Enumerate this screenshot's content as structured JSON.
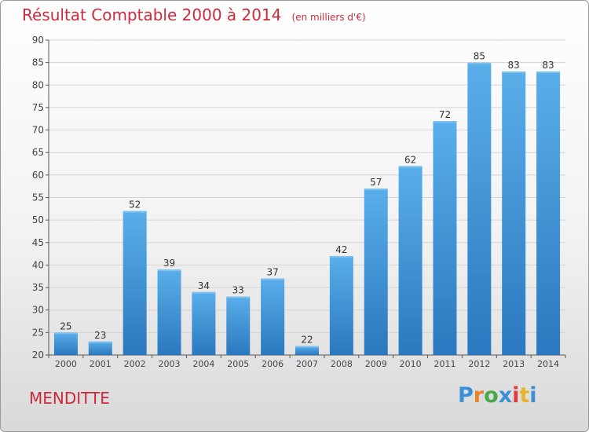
{
  "chart_data": {
    "type": "bar",
    "title": "Résultat Comptable 2000 à 2014",
    "subtitle": "(en milliers d'€)",
    "categories": [
      "2000",
      "2001",
      "2002",
      "2003",
      "2004",
      "2005",
      "2006",
      "2007",
      "2008",
      "2009",
      "2010",
      "2011",
      "2012",
      "2013",
      "2014"
    ],
    "values": [
      25,
      23,
      52,
      39,
      34,
      33,
      37,
      22,
      42,
      57,
      62,
      72,
      85,
      83,
      83
    ],
    "ylim": [
      20,
      90
    ],
    "yticks": [
      20,
      25,
      30,
      35,
      40,
      45,
      50,
      55,
      60,
      65,
      70,
      75,
      80,
      85,
      90
    ],
    "xlabel": "",
    "ylabel": "",
    "grid": true,
    "bar_color": "#3a8fd6"
  },
  "footer": {
    "commune": "MENDITTE",
    "logo_text": "Proxiti"
  }
}
